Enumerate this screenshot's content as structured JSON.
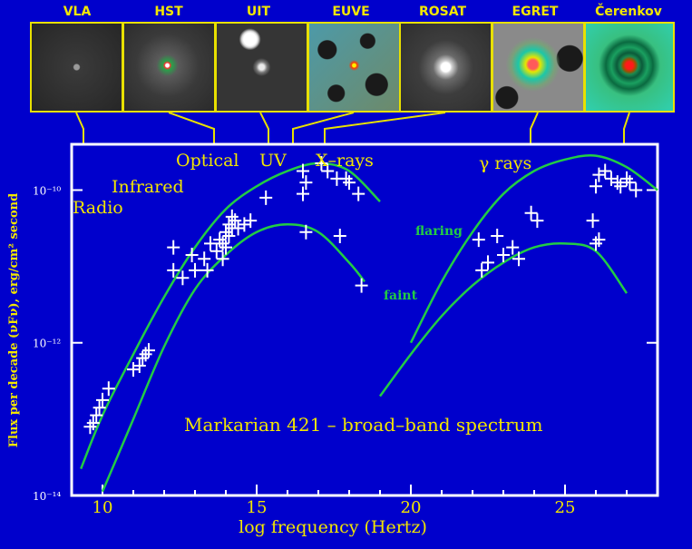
{
  "telescopes": [
    "VLA",
    "HST",
    "UIT",
    "EUVE",
    "ROSAT",
    "EGRET",
    "Čerenkov"
  ],
  "colors": {
    "background": "#0000cc",
    "frame": "#ffffff",
    "bands": "#f2e600",
    "models": "#22cc44",
    "points": "#ffffff"
  },
  "chart_data": {
    "type": "scatter",
    "title": "Markarian 421 – broad–band spectrum",
    "xlabel": "log frequency (Hertz)",
    "ylabel": "Flux per decade (νFν), erg/cm² second",
    "xlim": [
      9,
      28
    ],
    "ylim": [
      -14,
      -9.4
    ],
    "y_scale": "log",
    "x_ticks": [
      "10",
      "15",
      "20",
      "25"
    ],
    "y_ticks": [
      "10⁻¹⁴",
      "10⁻¹²",
      "10⁻¹⁰"
    ],
    "band_labels": [
      "Radio",
      "Infrared",
      "Optical",
      "UV",
      "X–rays",
      "γ rays"
    ],
    "curve_labels": [
      "flaring",
      "faint"
    ],
    "series": [
      {
        "name": "flaring",
        "x": [
          9.3,
          10,
          11,
          12,
          13,
          14,
          15,
          16,
          17,
          18,
          19,
          20,
          21,
          22,
          23,
          24,
          25,
          26,
          27,
          28
        ],
        "y": [
          -13.65,
          -12.95,
          -12.15,
          -11.4,
          -10.75,
          -10.25,
          -9.95,
          -9.75,
          -9.65,
          -9.75,
          -10.15,
          -12.0,
          -11.2,
          -10.55,
          -10.05,
          -9.75,
          -9.6,
          -9.55,
          -9.7,
          -10.0
        ]
      },
      {
        "name": "faint",
        "x": [
          10,
          11,
          12,
          13,
          14,
          15,
          16,
          17,
          18,
          18.5,
          19,
          20,
          21,
          22,
          23,
          24,
          25,
          26,
          27
        ],
        "y": [
          -13.95,
          -13.0,
          -12.05,
          -11.3,
          -10.85,
          -10.55,
          -10.45,
          -10.55,
          -10.95,
          -11.2,
          -12.7,
          -12.15,
          -11.65,
          -11.25,
          -10.95,
          -10.75,
          -10.7,
          -10.8,
          -11.35
        ]
      },
      {
        "name": "data",
        "x": [
          9.6,
          9.7,
          9.8,
          9.9,
          10.0,
          10.2,
          11.0,
          11.2,
          11.3,
          11.4,
          11.5,
          12.3,
          12.3,
          12.6,
          12.9,
          13.0,
          13.3,
          13.4,
          13.5,
          13.7,
          13.8,
          13.9,
          13.9,
          14.0,
          14.0,
          14.1,
          14.1,
          14.2,
          14.2,
          14.3,
          14.4,
          14.6,
          14.8,
          15.3,
          16.5,
          16.5,
          16.6,
          16.6,
          17.1,
          17.3,
          17.6,
          17.7,
          17.9,
          18.0,
          18.3,
          18.4,
          22.2,
          22.3,
          22.5,
          22.8,
          23.0,
          23.3,
          23.5,
          23.9,
          24.1,
          25.9,
          26.0,
          26.0,
          26.1,
          26.1,
          26.3,
          26.5,
          26.7,
          26.8,
          27.0,
          27.1,
          27.3
        ],
        "y": [
          -13.1,
          -13.05,
          -12.95,
          -12.85,
          -12.75,
          -12.6,
          -12.35,
          -12.3,
          -12.2,
          -12.15,
          -12.1,
          -10.75,
          -11.05,
          -11.15,
          -10.85,
          -11.05,
          -10.9,
          -11.05,
          -10.7,
          -10.8,
          -10.65,
          -10.9,
          -10.7,
          -10.55,
          -10.75,
          -10.45,
          -10.6,
          -10.35,
          -10.5,
          -10.4,
          -10.5,
          -10.45,
          -10.4,
          -10.1,
          -9.75,
          -10.05,
          -10.55,
          -9.9,
          -9.65,
          -9.75,
          -9.85,
          -10.6,
          -9.85,
          -9.9,
          -10.05,
          -11.25,
          -10.65,
          -11.05,
          -10.95,
          -10.6,
          -10.85,
          -10.75,
          -10.9,
          -10.3,
          -10.4,
          -10.4,
          -10.7,
          -9.95,
          -9.8,
          -10.65,
          -9.75,
          -9.85,
          -9.9,
          -9.95,
          -9.85,
          -9.9,
          -10.0
        ]
      }
    ]
  }
}
